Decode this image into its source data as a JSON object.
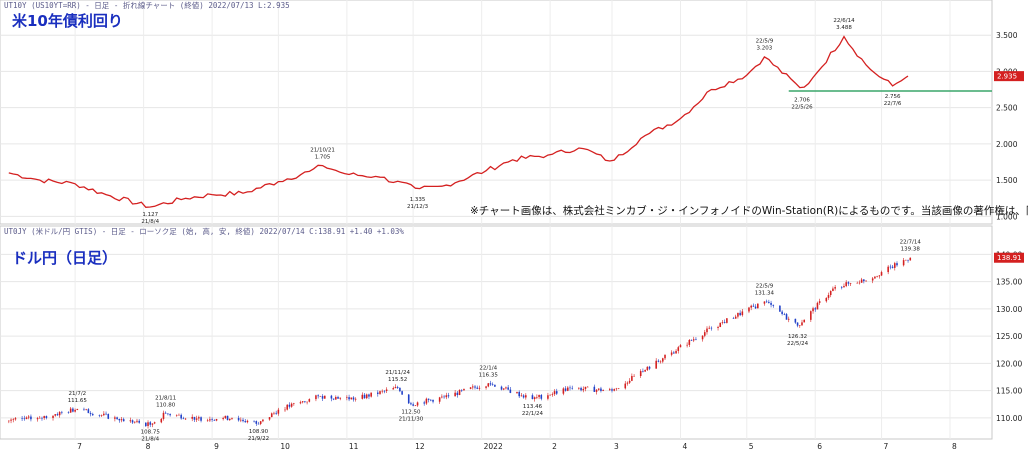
{
  "header_top": "UT10Y (US10YT=RR) - 日足 - 折れ線チャート (終値)   2022/07/13  L:2.935",
  "header_bottom": "UT0JY (米ドル/円 GTIS) - 日足 - ローソク足 (始, 高, 安, 終値)   2022/07/14  C:138.91 +1.40 +1.03%",
  "copyright": "※チャート画像は、株式会社ミンカブ・ジ・インフォノイドのWin-Station(R)によるものです。当該画像の著作権は、同社に帰属します。",
  "chart_data": [
    {
      "type": "line",
      "title": "米10年債利回り",
      "ylim": [
        0.95,
        3.82
      ],
      "y_ticks": [
        "1.000",
        "1.500",
        "2.000",
        "2.500",
        "3.000",
        "3.500"
      ],
      "last_value_label": "2.935",
      "colors": {
        "line": "#d42020",
        "support": "#3aa56a",
        "badge": "#d42020"
      },
      "support_level": 2.73,
      "x": [
        "2021/06/01",
        "2021/06/15",
        "2021/07/01",
        "2021/07/15",
        "2021/08/04",
        "2021/08/20",
        "2021/09/01",
        "2021/09/15",
        "2021/10/01",
        "2021/10/15",
        "2021/10/21",
        "2021/11/01",
        "2021/11/15",
        "2021/12/03",
        "2021/12/15",
        "2022/01/03",
        "2022/01/15",
        "2022/02/01",
        "2022/02/15",
        "2022/03/01",
        "2022/03/15",
        "2022/04/01",
        "2022/04/15",
        "2022/05/01",
        "2022/05/09",
        "2022/05/26",
        "2022/06/01",
        "2022/06/14",
        "2022/06/25",
        "2022/07/06",
        "2022/07/13"
      ],
      "values": [
        1.6,
        1.5,
        1.45,
        1.3,
        1.13,
        1.25,
        1.3,
        1.32,
        1.48,
        1.62,
        1.7,
        1.58,
        1.55,
        1.38,
        1.42,
        1.63,
        1.78,
        1.85,
        1.95,
        1.75,
        2.1,
        2.35,
        2.75,
        2.95,
        3.2,
        2.75,
        2.95,
        3.48,
        3.05,
        2.8,
        2.935
      ],
      "annotations": [
        {
          "date": "2021/08/04",
          "value": 1.127,
          "label_value": "1.127",
          "label_date": "21/8/4",
          "pos": "below"
        },
        {
          "date": "2021/10/21",
          "value": 1.705,
          "label_value": "1.705",
          "label_date": "21/10/21",
          "pos": "above"
        },
        {
          "date": "2021/12/03",
          "value": 1.335,
          "label_value": "1.335",
          "label_date": "21/12/3",
          "pos": "below"
        },
        {
          "date": "2022/05/09",
          "value": 3.203,
          "label_value": "3.203",
          "label_date": "22/5/9",
          "pos": "above"
        },
        {
          "date": "2022/05/26",
          "value": 2.706,
          "label_value": "2.706",
          "label_date": "22/5/26",
          "pos": "below"
        },
        {
          "date": "2022/06/14",
          "value": 3.488,
          "label_value": "3.488",
          "label_date": "22/6/14",
          "pos": "above"
        },
        {
          "date": "2022/07/06",
          "value": 2.756,
          "label_value": "2.756",
          "label_date": "22/7/6",
          "pos": "below"
        }
      ]
    },
    {
      "type": "candlestick",
      "title": "ドル円（日足）",
      "ylim": [
        106.5,
        143.0
      ],
      "y_ticks": [
        "110.00",
        "115.00",
        "120.00",
        "125.00",
        "130.00",
        "135.00",
        "140.00"
      ],
      "last_value_label": "138.91",
      "colors": {
        "up": "#d42020",
        "down": "#2040c8",
        "badge": "#d42020"
      },
      "x": [
        "2021/06/01",
        "2021/06/15",
        "2021/07/02",
        "2021/07/20",
        "2021/08/04",
        "2021/08/11",
        "2021/08/25",
        "2021/09/10",
        "2021/09/22",
        "2021/10/01",
        "2021/10/20",
        "2021/11/05",
        "2021/11/24",
        "2021/11/30",
        "2021/12/15",
        "2022/01/04",
        "2022/01/24",
        "2022/02/10",
        "2022/03/01",
        "2022/03/15",
        "2022/03/28",
        "2022/04/15",
        "2022/05/09",
        "2022/05/24",
        "2022/06/10",
        "2022/06/25",
        "2022/07/14"
      ],
      "values": [
        109.5,
        110.0,
        111.65,
        109.8,
        108.75,
        110.8,
        109.9,
        110.0,
        108.9,
        111.5,
        114.0,
        113.5,
        115.52,
        112.5,
        113.8,
        116.35,
        113.46,
        115.5,
        115.0,
        118.5,
        122.0,
        126.5,
        131.34,
        126.92,
        134.0,
        135.5,
        139.38
      ],
      "x_labels": [
        "7",
        "8",
        "9",
        "10",
        "11",
        "12",
        "2022",
        "2",
        "3",
        "4",
        "5",
        "6",
        "7",
        "8"
      ],
      "annotations": [
        {
          "date": "2021/07/02",
          "value": 111.65,
          "label_value": "111.65",
          "label_date": "21/7/2",
          "pos": "above"
        },
        {
          "date": "2021/08/04",
          "value": 108.75,
          "label_value": "108.75",
          "label_date": "21/8/4",
          "pos": "below"
        },
        {
          "date": "2021/08/11",
          "value": 110.8,
          "label_value": "110.80",
          "label_date": "21/8/11",
          "pos": "above"
        },
        {
          "date": "2021/09/22",
          "value": 108.9,
          "label_value": "108.90",
          "label_date": "21/9/22",
          "pos": "below"
        },
        {
          "date": "2021/11/24",
          "value": 115.52,
          "label_value": "115.52",
          "label_date": "21/11/24",
          "pos": "above"
        },
        {
          "date": "2021/11/30",
          "value": 112.5,
          "label_value": "112.50",
          "label_date": "21/11/30",
          "pos": "below"
        },
        {
          "date": "2022/01/04",
          "value": 116.35,
          "label_value": "116.35",
          "label_date": "22/1/4",
          "pos": "above"
        },
        {
          "date": "2022/01/24",
          "value": 113.46,
          "label_value": "113.46",
          "label_date": "22/1/24",
          "pos": "below"
        },
        {
          "date": "2022/05/09",
          "value": 131.34,
          "label_value": "131.34",
          "label_date": "22/5/9",
          "pos": "above"
        },
        {
          "date": "2022/05/24",
          "value": 126.32,
          "label_value": "126.32",
          "label_date": "22/5/24",
          "pos": "below"
        },
        {
          "date": "2022/07/14",
          "value": 139.38,
          "label_value": "139.38",
          "label_date": "22/7/14",
          "pos": "above"
        }
      ]
    }
  ]
}
